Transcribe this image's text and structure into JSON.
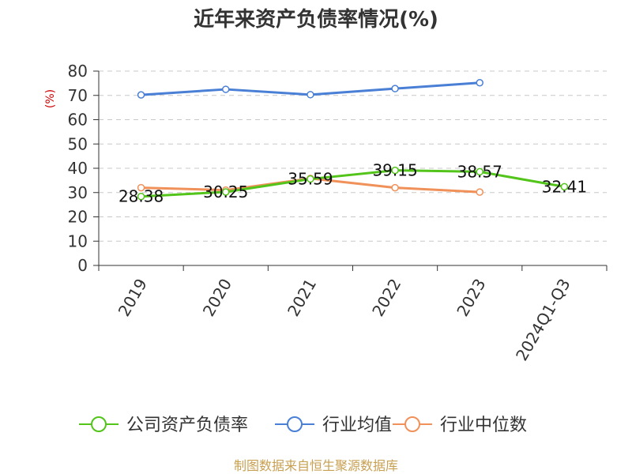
{
  "chart_data": {
    "type": "line",
    "title": "近年来资产负债率情况(%)",
    "ylabel": "(%)",
    "ylim": [
      0,
      80
    ],
    "yticks": [
      0,
      10,
      20,
      30,
      40,
      50,
      60,
      70,
      80
    ],
    "categories": [
      "2019",
      "2020",
      "2021",
      "2022",
      "2023",
      "2024Q1-Q3"
    ],
    "grid": true,
    "legend_position": "bottom",
    "series": [
      {
        "name": "公司资产负债率",
        "color": "#52c41a",
        "values": [
          28.38,
          30.25,
          35.59,
          39.15,
          38.57,
          32.41
        ],
        "labels": [
          "28.38",
          "30.25",
          "35.59",
          "39.15",
          "38.57",
          "32.41"
        ]
      },
      {
        "name": "行业均值",
        "color": "#4a7fd6",
        "values": [
          70.2,
          72.5,
          70.3,
          72.8,
          75.2,
          null
        ]
      },
      {
        "name": "行业中位数",
        "color": "#f0915a",
        "values": [
          32.0,
          31.0,
          35.8,
          32.0,
          30.2,
          null
        ]
      }
    ],
    "source": "制图数据来自恒生聚源数据库"
  }
}
